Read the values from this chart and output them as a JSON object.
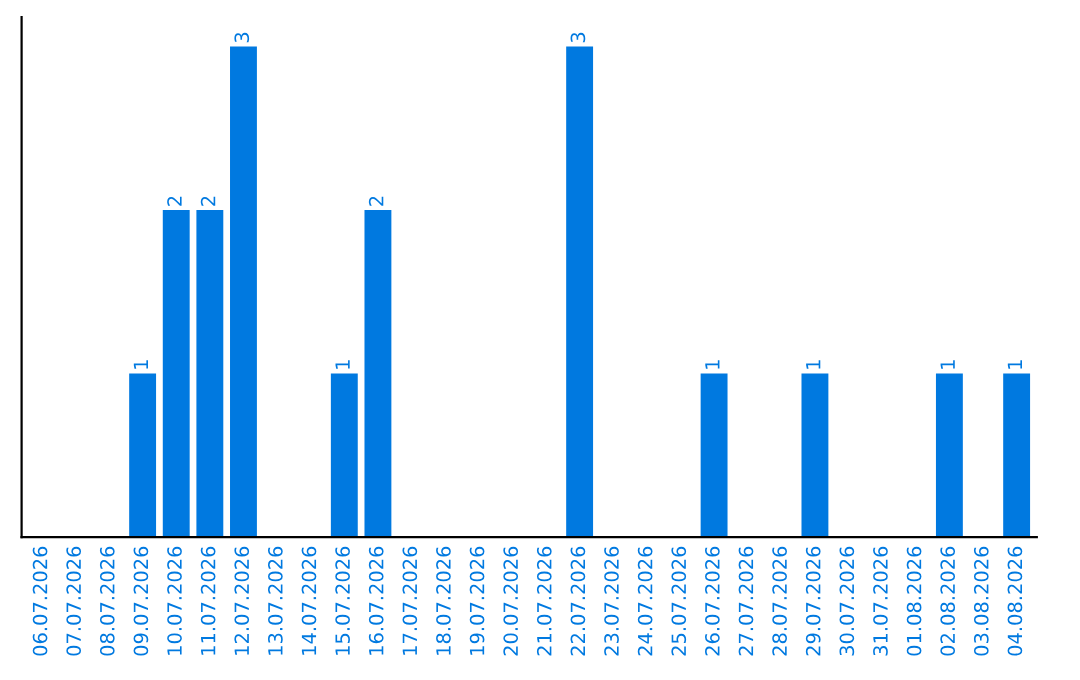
{
  "chart_data": {
    "type": "bar",
    "categories": [
      "06.07.2026",
      "07.07.2026",
      "08.07.2026",
      "09.07.2026",
      "10.07.2026",
      "11.07.2026",
      "12.07.2026",
      "13.07.2026",
      "14.07.2026",
      "15.07.2026",
      "16.07.2026",
      "17.07.2026",
      "18.07.2026",
      "19.07.2026",
      "20.07.2026",
      "21.07.2026",
      "22.07.2026",
      "23.07.2026",
      "24.07.2026",
      "25.07.2026",
      "26.07.2026",
      "27.07.2026",
      "28.07.2026",
      "29.07.2026",
      "30.07.2026",
      "31.07.2026",
      "01.08.2026",
      "02.08.2026",
      "03.08.2026",
      "04.08.2026"
    ],
    "values": [
      0,
      0,
      0,
      1,
      2,
      2,
      3,
      0,
      0,
      1,
      2,
      0,
      0,
      0,
      0,
      0,
      3,
      0,
      0,
      0,
      1,
      0,
      0,
      1,
      0,
      0,
      0,
      1,
      0,
      1
    ],
    "value_labels": [
      null,
      null,
      null,
      "1",
      "2",
      "2",
      "3",
      null,
      null,
      "1",
      "2",
      null,
      null,
      null,
      null,
      null,
      "3",
      null,
      null,
      null,
      "1",
      null,
      null,
      "1",
      null,
      null,
      null,
      "1",
      null,
      "1"
    ],
    "color": "#0079e0",
    "grid": false,
    "legend": false
  }
}
